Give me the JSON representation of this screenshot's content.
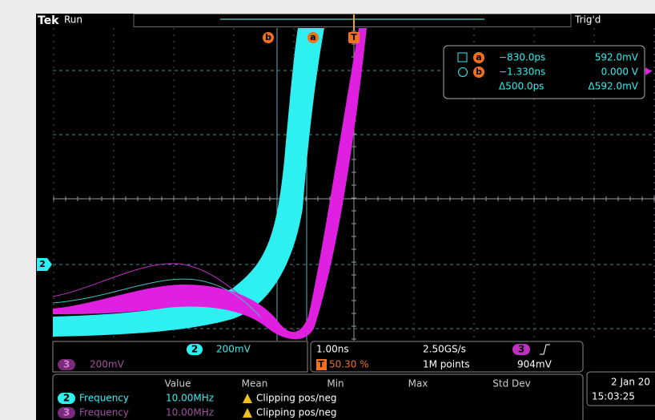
{
  "header": {
    "brand": "Tek",
    "status": "Run",
    "trigger_status": "Trig'd"
  },
  "cursors": {
    "markers": [
      "b",
      "a"
    ],
    "trigger_marker": "T",
    "readout": {
      "rows": [
        {
          "symbol": "a",
          "time": "−830.0ps",
          "voltage": "592.0mV"
        },
        {
          "symbol": "b",
          "time": "−1.330ns",
          "voltage": "0.000 V"
        }
      ],
      "delta_time": "Δ500.0ps",
      "delta_voltage": "Δ592.0mV"
    }
  },
  "channel_marker": "2",
  "channels": [
    {
      "number": "2",
      "scale": "200mV"
    },
    {
      "number": "3",
      "scale": "200mV"
    }
  ],
  "timebase": {
    "scale": "1.00ns",
    "sample_rate": "2.50GS/s",
    "trigger_position_icon": "T",
    "trigger_position": "50.30 %",
    "record_length": "1M points"
  },
  "trigger": {
    "channel": "3",
    "level": "904mV"
  },
  "measurements": {
    "columns": [
      "Value",
      "Mean",
      "Min",
      "Max",
      "Std Dev"
    ],
    "rows": [
      {
        "channel": "2",
        "name": "Frequency",
        "value": "10.00MHz",
        "status": "Clipping pos/neg"
      },
      {
        "channel": "3",
        "name": "Frequency",
        "value": "10.00MHz",
        "status": "Clipping pos/neg"
      }
    ]
  },
  "datetime": {
    "date": "2 Jan 20",
    "time": "15:03:25"
  }
}
